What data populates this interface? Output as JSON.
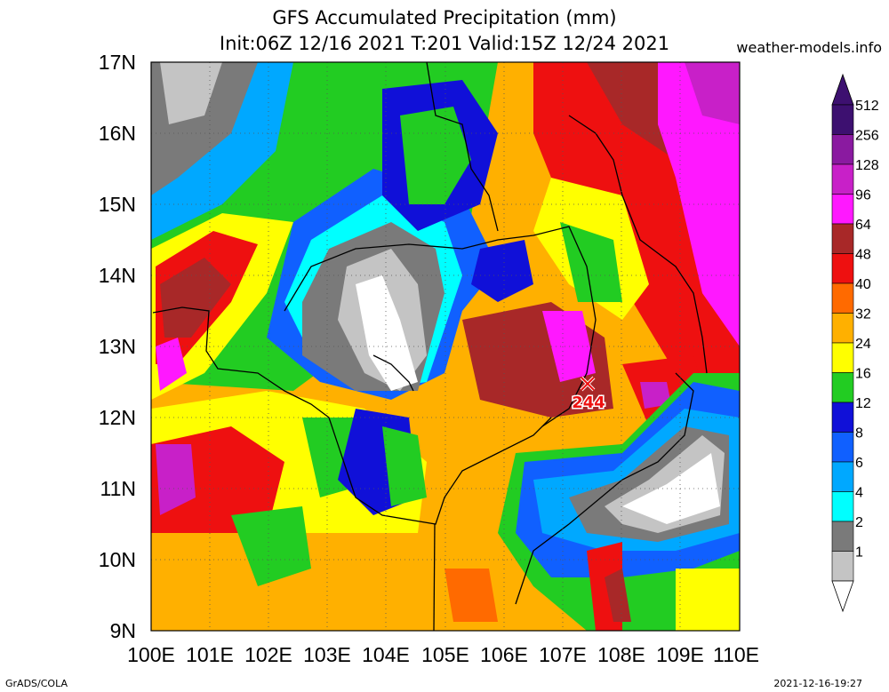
{
  "title_line1": "GFS Accumulated Precipitation (mm)",
  "title_line2": "Init:06Z 12/16 2021 T:201 Valid:15Z 12/24 2021",
  "site": "weather-models.info",
  "credit": "GrADS/COLA",
  "timestamp": "2021-12-16-19:27",
  "lat_labels": [
    "17N",
    "16N",
    "15N",
    "14N",
    "13N",
    "12N",
    "11N",
    "10N",
    "9N"
  ],
  "lon_labels": [
    "100E",
    "101E",
    "102E",
    "103E",
    "104E",
    "105E",
    "106E",
    "107E",
    "108E",
    "109E",
    "110E"
  ],
  "legend": [
    {
      "label": "512",
      "color": "#3d1070"
    },
    {
      "label": "256",
      "color": "#8a1aa0"
    },
    {
      "label": "128",
      "color": "#c820c8"
    },
    {
      "label": "96",
      "color": "#ff18ff"
    },
    {
      "label": "64",
      "color": "#a82828"
    },
    {
      "label": "48",
      "color": "#ee1010"
    },
    {
      "label": "40",
      "color": "#ff6a00"
    },
    {
      "label": "32",
      "color": "#ffb000"
    },
    {
      "label": "24",
      "color": "#ffff00"
    },
    {
      "label": "16",
      "color": "#22cc22"
    },
    {
      "label": "12",
      "color": "#1010d8"
    },
    {
      "label": "8",
      "color": "#1060ff"
    },
    {
      "label": "6",
      "color": "#00a8ff"
    },
    {
      "label": "4",
      "color": "#00ffff"
    },
    {
      "label": "2",
      "color": "#7a7a7a"
    },
    {
      "label": "1",
      "color": "#c4c4c4"
    }
  ],
  "marker_label": "244"
}
